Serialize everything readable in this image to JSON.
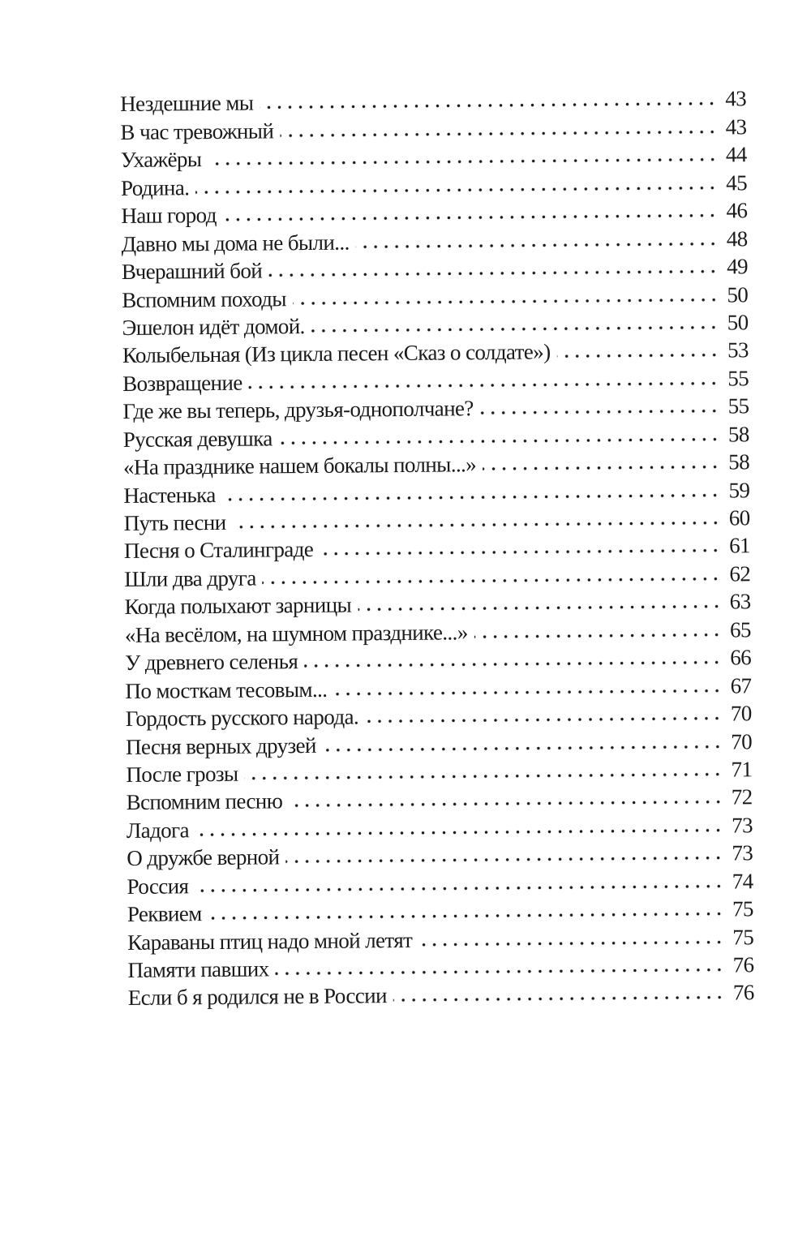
{
  "toc": [
    {
      "title": "Нездешние мы",
      "page": "43"
    },
    {
      "title": "В час тревожный",
      "page": "43"
    },
    {
      "title": "Ухажёры",
      "page": "44"
    },
    {
      "title": "Родина.",
      "page": "45"
    },
    {
      "title": "Наш город",
      "page": "46"
    },
    {
      "title": "Давно мы дома не были...",
      "page": "48"
    },
    {
      "title": "Вчерашний бой",
      "page": "49"
    },
    {
      "title": "Вспомним походы",
      "page": "50"
    },
    {
      "title": "Эшелон идёт домой.",
      "page": "50"
    },
    {
      "title": "Колыбельная (Из цикла песен «Сказ о солдате»)",
      "page": "53"
    },
    {
      "title": "Возвращение",
      "page": "55"
    },
    {
      "title": "Где же вы теперь, друзья-однополчане?",
      "page": "55"
    },
    {
      "title": "Русская девушка",
      "page": "58"
    },
    {
      "title": "«На празднике нашем бокалы полны...»",
      "page": "58"
    },
    {
      "title": "Настенька",
      "page": "59"
    },
    {
      "title": "Путь песни",
      "page": "60"
    },
    {
      "title": "Песня о Сталинграде",
      "page": "61"
    },
    {
      "title": "Шли два друга",
      "page": "62"
    },
    {
      "title": "Когда полыхают зарницы",
      "page": "63"
    },
    {
      "title": "«На весёлом, на шумном празднике...»",
      "page": "65"
    },
    {
      "title": "У древнего селенья",
      "page": "66"
    },
    {
      "title": "По мосткам тесовым...",
      "page": "67"
    },
    {
      "title": "Гордость русского народа.",
      "page": "70"
    },
    {
      "title": "Песня верных друзей",
      "page": "70"
    },
    {
      "title": "После грозы",
      "page": "71"
    },
    {
      "title": "Вспомним песню",
      "page": "72"
    },
    {
      "title": "Ладога",
      "page": "73"
    },
    {
      "title": "О дружбе верной",
      "page": "73"
    },
    {
      "title": "Россия",
      "page": "74"
    },
    {
      "title": "Реквием",
      "page": "75"
    },
    {
      "title": "Караваны птиц надо мной летят",
      "page": "75"
    },
    {
      "title": "Памяти павших",
      "page": "76"
    },
    {
      "title": "Если б я родился не в России",
      "page": "76"
    }
  ]
}
